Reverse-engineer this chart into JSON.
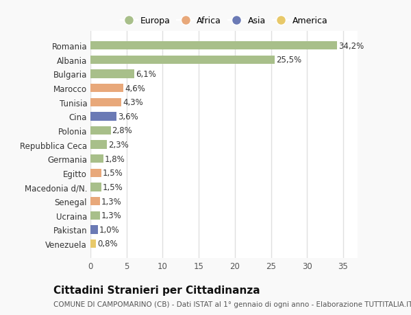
{
  "categories": [
    "Venezuela",
    "Pakistan",
    "Ucraina",
    "Senegal",
    "Macedonia d/N.",
    "Egitto",
    "Germania",
    "Repubblica Ceca",
    "Polonia",
    "Cina",
    "Tunisia",
    "Marocco",
    "Bulgaria",
    "Albania",
    "Romania"
  ],
  "values": [
    0.8,
    1.0,
    1.3,
    1.3,
    1.5,
    1.5,
    1.8,
    2.3,
    2.8,
    3.6,
    4.3,
    4.6,
    6.1,
    25.5,
    34.2
  ],
  "labels": [
    "0,8%",
    "1,0%",
    "1,3%",
    "1,3%",
    "1,5%",
    "1,5%",
    "1,8%",
    "2,3%",
    "2,8%",
    "3,6%",
    "4,3%",
    "4,6%",
    "6,1%",
    "25,5%",
    "34,2%"
  ],
  "colors": [
    "#e8c96a",
    "#6b7ab5",
    "#a8bf8a",
    "#e8a87a",
    "#a8bf8a",
    "#e8a87a",
    "#a8bf8a",
    "#a8bf8a",
    "#a8bf8a",
    "#6b7ab5",
    "#e8a87a",
    "#e8a87a",
    "#a8bf8a",
    "#a8bf8a",
    "#a8bf8a"
  ],
  "legend_labels": [
    "Europa",
    "Africa",
    "Asia",
    "America"
  ],
  "legend_colors": [
    "#a8bf8a",
    "#e8a87a",
    "#6b7ab5",
    "#e8c96a"
  ],
  "title": "Cittadini Stranieri per Cittadinanza",
  "subtitle": "COMUNE DI CAMPOMARINO (CB) - Dati ISTAT al 1° gennaio di ogni anno - Elaborazione TUTTITALIA.IT",
  "xlim": [
    0,
    37
  ],
  "xticks": [
    0,
    5,
    10,
    15,
    20,
    25,
    30,
    35
  ],
  "bg_color": "#f9f9f9",
  "plot_bg_color": "#ffffff",
  "grid_color": "#e0e0e0",
  "bar_height": 0.6,
  "label_fontsize": 8.5,
  "ytick_fontsize": 8.5,
  "xtick_fontsize": 8.5,
  "title_fontsize": 11,
  "subtitle_fontsize": 7.5
}
